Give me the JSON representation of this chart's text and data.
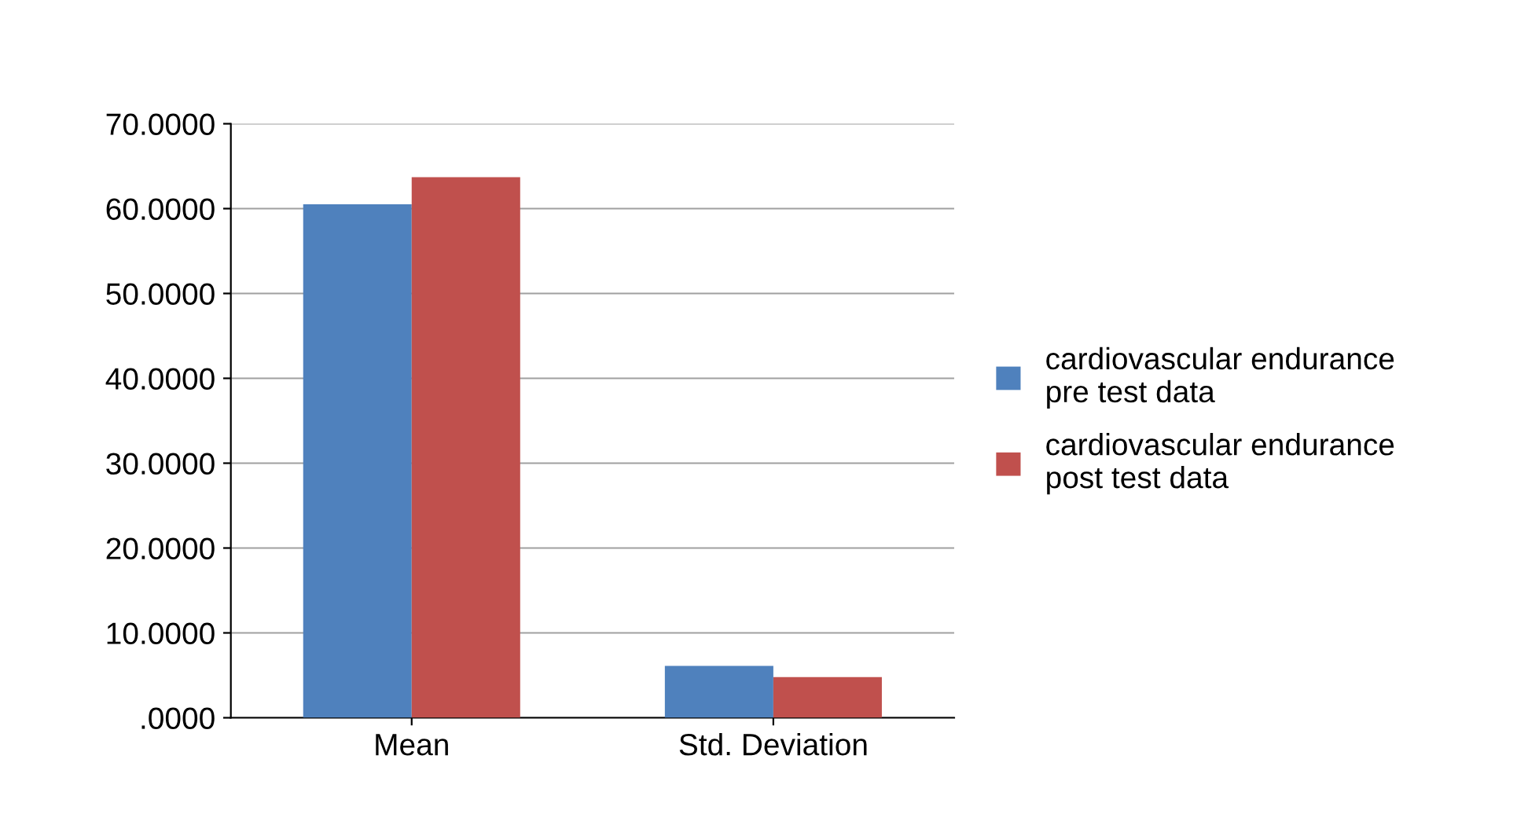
{
  "chart_data": {
    "type": "bar",
    "categories": [
      "Mean",
      "Std. Deviation"
    ],
    "series": [
      {
        "name": "cardiovascular endurance\npre test data",
        "color": "#4f81bd",
        "values": [
          60.5,
          6.1
        ]
      },
      {
        "name": "cardiovascular endurance\npost test data",
        "color": "#c0504d",
        "values": [
          63.7,
          4.8
        ]
      }
    ],
    "ylim": [
      0,
      70
    ],
    "yticks": [
      {
        "value": 0,
        "label": ".0000"
      },
      {
        "value": 10,
        "label": "10.0000"
      },
      {
        "value": 20,
        "label": "20.0000"
      },
      {
        "value": 30,
        "label": "30.0000"
      },
      {
        "value": 40,
        "label": "40.0000"
      },
      {
        "value": 50,
        "label": "50.0000"
      },
      {
        "value": 60,
        "label": "60.0000"
      },
      {
        "value": 70,
        "label": "70.0000"
      }
    ],
    "grid": "y",
    "legend": "right"
  }
}
